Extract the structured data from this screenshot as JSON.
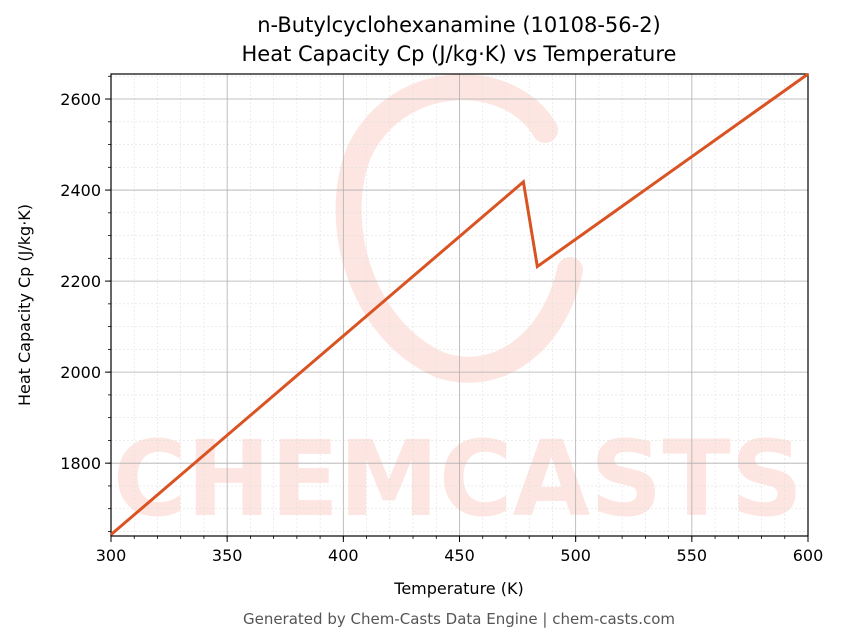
{
  "chart_data": {
    "type": "line",
    "title": "n-Butylcyclohexanamine (10108-56-2)",
    "subtitle": "Heat Capacity Cp (J/kg·K) vs Temperature",
    "xlabel": "Temperature (K)",
    "ylabel": "Heat Capacity Cp (J/kg·K)",
    "xlim": [
      300,
      600
    ],
    "ylim": [
      1640,
      2655
    ],
    "x_ticks": [
      300,
      350,
      400,
      450,
      500,
      550,
      600
    ],
    "y_ticks": [
      1800,
      2000,
      2200,
      2400,
      2600
    ],
    "grid": true,
    "series": [
      {
        "color": "#d95323",
        "x": [
          300,
          477.5,
          483.5,
          600
        ],
        "y": [
          1643,
          2418,
          2232,
          2655
        ]
      }
    ]
  },
  "watermark": {
    "text": "CHEMCASTS",
    "color": "#fde3de"
  },
  "footer": "Generated by Chem-Casts Data Engine | chem-casts.com"
}
